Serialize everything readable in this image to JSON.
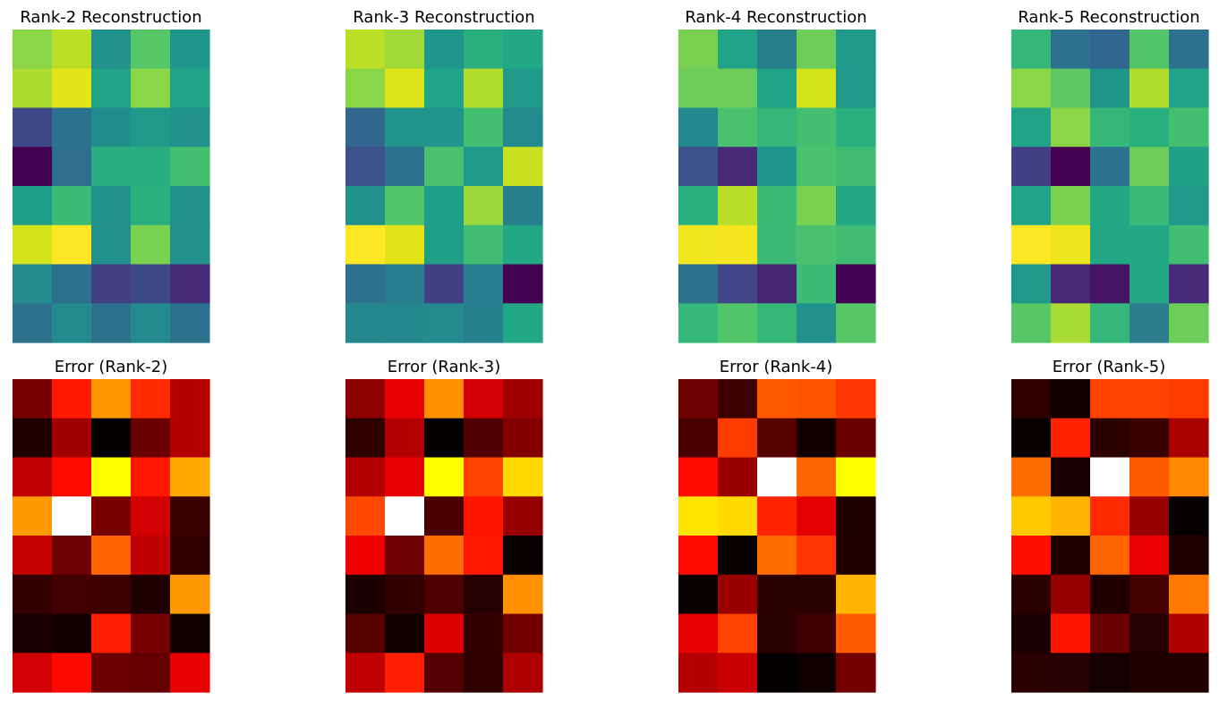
{
  "chart_data": [
    {
      "type": "heatmap",
      "colormap": "viridis",
      "title": "Rank-2 Reconstruction",
      "axes": "off",
      "rows": 8,
      "cols": 5,
      "colors": [
        [
          "#8bd646",
          "#bbdf27",
          "#21918c",
          "#56c667",
          "#1f968b"
        ],
        [
          "#addc30",
          "#e5e419",
          "#20a386",
          "#8bd646",
          "#20a386"
        ],
        [
          "#3e4989",
          "#2c728e",
          "#218e8d",
          "#1f998a",
          "#21918c"
        ],
        [
          "#440154",
          "#2d6e8e",
          "#29af7f",
          "#29af7f",
          "#44bf70"
        ],
        [
          "#1f9f88",
          "#3bbb75",
          "#21918c",
          "#2ab07f",
          "#21918c"
        ],
        [
          "#d2e21b",
          "#fde725",
          "#21918c",
          "#7ad151",
          "#21918c"
        ],
        [
          "#238a8d",
          "#2d708e",
          "#433e85",
          "#3e4989",
          "#472a7a"
        ],
        [
          "#2c728e",
          "#238a8d",
          "#2c728e",
          "#238a8d",
          "#2c728e"
        ]
      ]
    },
    {
      "type": "heatmap",
      "colormap": "viridis",
      "title": "Rank-3 Reconstruction",
      "axes": "off",
      "rows": 8,
      "cols": 5,
      "colors": [
        [
          "#bbdf27",
          "#a0da39",
          "#1f968b",
          "#2ab07f",
          "#22a884"
        ],
        [
          "#8bd646",
          "#dde318",
          "#20a386",
          "#b2dd2d",
          "#1f998a"
        ],
        [
          "#31668e",
          "#1f958b",
          "#1f958b",
          "#44bf70",
          "#238a8d"
        ],
        [
          "#3b528b",
          "#2c728e",
          "#4ac16d",
          "#1f998a",
          "#c8e020"
        ],
        [
          "#21918c",
          "#52c569",
          "#1f9f88",
          "#9bd93c",
          "#277f8e"
        ],
        [
          "#fde725",
          "#e2e418",
          "#1f9f88",
          "#40bd72",
          "#22a884"
        ],
        [
          "#2c728e",
          "#287d8e",
          "#423f85",
          "#287d8e",
          "#440154"
        ],
        [
          "#23898e",
          "#23898e",
          "#238a8d",
          "#27808e",
          "#22a884"
        ]
      ]
    },
    {
      "type": "heatmap",
      "colormap": "viridis",
      "title": "Rank-4 Reconstruction",
      "axes": "off",
      "rows": 8,
      "cols": 5,
      "colors": [
        [
          "#7ad151",
          "#20a386",
          "#277f8e",
          "#6ccd5a",
          "#1f998a"
        ],
        [
          "#6ccd5a",
          "#6ccd5a",
          "#20a386",
          "#d2e21b",
          "#1f998a"
        ],
        [
          "#23898e",
          "#4ac16d",
          "#35b779",
          "#44bf70",
          "#2ab07f"
        ],
        [
          "#3b528b",
          "#482979",
          "#1f968b",
          "#4ac16d",
          "#40bd72"
        ],
        [
          "#2ab07f",
          "#b8de29",
          "#3bbb75",
          "#7ad151",
          "#22a884"
        ],
        [
          "#f1e51d",
          "#f6e620",
          "#3bbb75",
          "#4ac16d",
          "#40bd72"
        ],
        [
          "#2d708e",
          "#404688",
          "#482475",
          "#3bbb75",
          "#440154"
        ],
        [
          "#35b779",
          "#52c569",
          "#35b779",
          "#21918c",
          "#56c667"
        ]
      ]
    },
    {
      "type": "heatmap",
      "colormap": "viridis",
      "title": "Rank-5 Reconstruction",
      "axes": "off",
      "rows": 8,
      "cols": 5,
      "colors": [
        [
          "#35b779",
          "#2c728e",
          "#31668e",
          "#52c569",
          "#2c728e"
        ],
        [
          "#8bd646",
          "#5ec962",
          "#20968b",
          "#b2dd2d",
          "#20a386"
        ],
        [
          "#20a386",
          "#8bd646",
          "#35b779",
          "#2ab07f",
          "#44bf70"
        ],
        [
          "#423f85",
          "#440154",
          "#2c728e",
          "#6ccd5a",
          "#1fa187"
        ],
        [
          "#20a386",
          "#7ad151",
          "#22a884",
          "#3bbb75",
          "#1f998a"
        ],
        [
          "#fde725",
          "#ebe51a",
          "#22a884",
          "#22a884",
          "#40bd72"
        ],
        [
          "#1f998a",
          "#482979",
          "#471365",
          "#22a884",
          "#472a7a"
        ],
        [
          "#56c667",
          "#a8db34",
          "#35b779",
          "#2c7e8e",
          "#6ccd5a"
        ]
      ]
    },
    {
      "type": "heatmap",
      "colormap": "hot",
      "title": "Error (Rank-2)",
      "axes": "off",
      "rows": 8,
      "cols": 5,
      "colors": [
        [
          "#7a0000",
          "#ff1800",
          "#ff9600",
          "#ff2a00",
          "#b40000"
        ],
        [
          "#1e0000",
          "#a00000",
          "#050000",
          "#6a0000",
          "#b40000"
        ],
        [
          "#c00000",
          "#ff0a00",
          "#ffff00",
          "#ff1800",
          "#ffa800"
        ],
        [
          "#ff9a00",
          "#ffffff",
          "#7a0000",
          "#d20000",
          "#3a0000"
        ],
        [
          "#c40000",
          "#6e0000",
          "#ff6400",
          "#be0000",
          "#300000"
        ],
        [
          "#320000",
          "#420000",
          "#3c0000",
          "#1e0000",
          "#ff9800"
        ],
        [
          "#1c0000",
          "#120000",
          "#ff1e00",
          "#780000",
          "#120000"
        ],
        [
          "#d20000",
          "#ff0800",
          "#6c0000",
          "#640000",
          "#e80000"
        ]
      ]
    },
    {
      "type": "heatmap",
      "colormap": "hot",
      "title": "Error (Rank-3)",
      "axes": "off",
      "rows": 8,
      "cols": 5,
      "colors": [
        [
          "#8c0000",
          "#e60000",
          "#ff9000",
          "#d20000",
          "#a00000"
        ],
        [
          "#2e0000",
          "#b40000",
          "#050000",
          "#500000",
          "#820000"
        ],
        [
          "#b40000",
          "#e60000",
          "#ffff00",
          "#ff4200",
          "#ffd800"
        ],
        [
          "#ff4800",
          "#ffffff",
          "#4a0000",
          "#ff1400",
          "#960000"
        ],
        [
          "#f00000",
          "#6e0000",
          "#ff6c00",
          "#ff1800",
          "#080000"
        ],
        [
          "#1c0000",
          "#320000",
          "#500000",
          "#260000",
          "#ff9000"
        ],
        [
          "#560000",
          "#120000",
          "#dc0000",
          "#320000",
          "#720000"
        ],
        [
          "#c00000",
          "#ff1e00",
          "#520000",
          "#2e0000",
          "#ae0000"
        ]
      ]
    },
    {
      "type": "heatmap",
      "colormap": "hot",
      "title": "Error (Rank-4)",
      "axes": "off",
      "rows": 8,
      "cols": 5,
      "colors": [
        [
          "#6e0000",
          "#3c0000",
          "#ff5a00",
          "#ff5400",
          "#ff3600"
        ],
        [
          "#4a0000",
          "#ff3c00",
          "#560000",
          "#120000",
          "#6a0000"
        ],
        [
          "#ff0a00",
          "#9a0000",
          "#ffffff",
          "#ff6600",
          "#ffff00"
        ],
        [
          "#ffe400",
          "#ffda00",
          "#ff2400",
          "#e40000",
          "#220000"
        ],
        [
          "#ff0a00",
          "#080000",
          "#ff6c00",
          "#ff3600",
          "#220000"
        ],
        [
          "#0a0000",
          "#9a0000",
          "#2c0000",
          "#2c0000",
          "#ffb400"
        ],
        [
          "#e60000",
          "#ff4200",
          "#2c0000",
          "#3e0000",
          "#ff5a00"
        ],
        [
          "#b40000",
          "#ca0000",
          "#040000",
          "#0e0000",
          "#720000"
        ]
      ]
    },
    {
      "type": "heatmap",
      "colormap": "hot",
      "title": "Error (Rank-5)",
      "axes": "off",
      "rows": 8,
      "cols": 5,
      "colors": [
        [
          "#2e0000",
          "#120000",
          "#ff4200",
          "#ff4200",
          "#ff3c00"
        ],
        [
          "#080000",
          "#ff2200",
          "#2c0000",
          "#3a0000",
          "#aa0000"
        ],
        [
          "#ff6c00",
          "#1c0000",
          "#ffffff",
          "#ff5a00",
          "#ff8a00"
        ],
        [
          "#ffc800",
          "#ffb400",
          "#ff2a00",
          "#960000",
          "#060000"
        ],
        [
          "#ff0e00",
          "#220000",
          "#ff6600",
          "#ea0000",
          "#1e0000"
        ],
        [
          "#2a0000",
          "#960000",
          "#200000",
          "#460000",
          "#ff7800"
        ],
        [
          "#1c0000",
          "#ff1400",
          "#6a0000",
          "#240000",
          "#ae0000"
        ],
        [
          "#2a0000",
          "#260000",
          "#140000",
          "#200000",
          "#200000"
        ]
      ]
    }
  ]
}
